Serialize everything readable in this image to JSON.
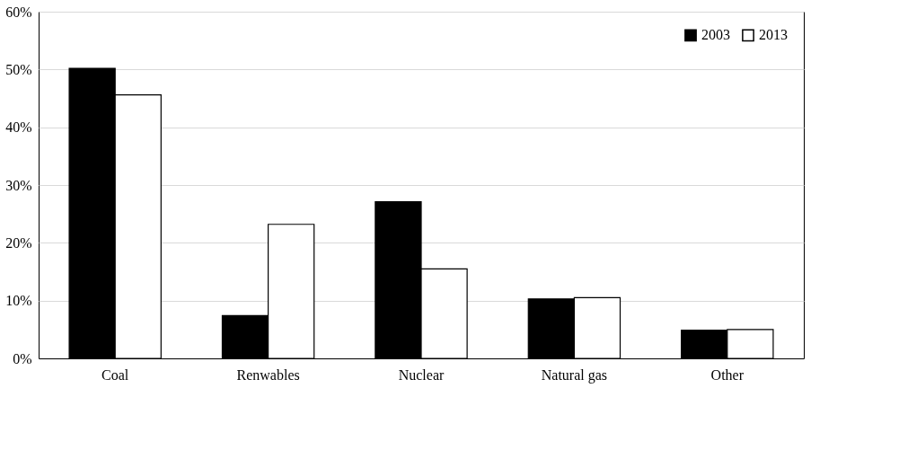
{
  "chart_data": {
    "type": "bar",
    "categories": [
      "Coal",
      "Renwables",
      "Nuclear",
      "Natural gas",
      "Other"
    ],
    "series": [
      {
        "name": "2003",
        "color": "#000000",
        "values": [
          50.2,
          7.4,
          27.1,
          10.3,
          4.9
        ]
      },
      {
        "name": "2013",
        "color": "#ffffff",
        "values": [
          45.6,
          23.2,
          15.5,
          10.5,
          5.0
        ]
      }
    ],
    "ylim": [
      0,
      60
    ],
    "yticks": [
      {
        "value": 0,
        "label": "0%"
      },
      {
        "value": 10,
        "label": "10%"
      },
      {
        "value": 20,
        "label": "20%"
      },
      {
        "value": 30,
        "label": "30%"
      },
      {
        "value": 40,
        "label": "40%"
      },
      {
        "value": 50,
        "label": "50%"
      },
      {
        "value": 60,
        "label": "60%"
      }
    ],
    "grid": "y",
    "legend": "top right"
  }
}
